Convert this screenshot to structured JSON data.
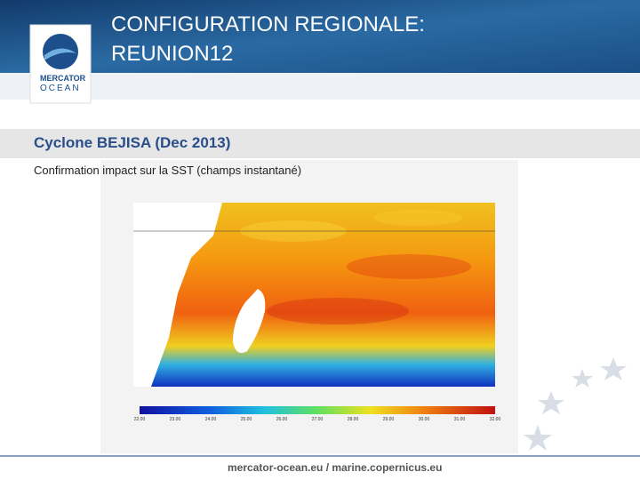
{
  "header": {
    "title_line1": "CONFIGURATION REGIONALE:",
    "title_line2": "REUNION12",
    "logo_line1": "MERCATOR",
    "logo_line2": "OCEAN"
  },
  "section": {
    "title": "Cyclone BEJISA (Dec 2013)",
    "caption": "Confirmation impact sur la SST (champs instantané)"
  },
  "figure": {
    "colorbar_labels": [
      "22.00",
      "23.00",
      "24.00",
      "25.00",
      "26.00",
      "27.00",
      "28.00",
      "29.00",
      "30.00",
      "31.00",
      "32.00"
    ]
  },
  "footer": {
    "text": "mercator-ocean.eu / marine.copernicus.eu"
  }
}
